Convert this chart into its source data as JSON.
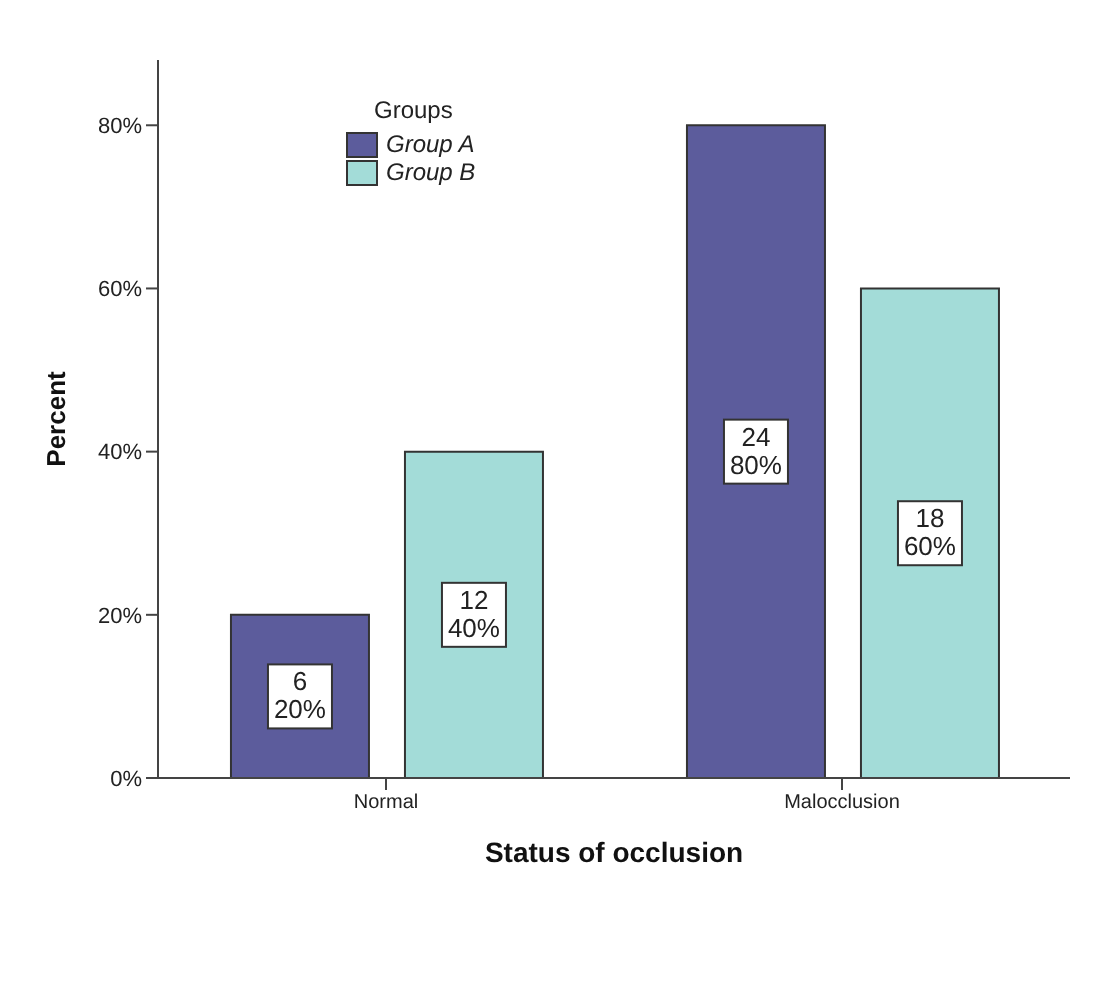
{
  "chart_data": {
    "type": "bar",
    "xlabel": "Status of occlusion",
    "ylabel": "Percent",
    "legend_title": "Groups",
    "categories": [
      "Normal",
      "Malocclusion"
    ],
    "series": [
      {
        "name": "Group A",
        "color": "#5c5c9c",
        "values": [
          20,
          80
        ],
        "value_labels": [
          "6\n20%",
          "24\n80%"
        ]
      },
      {
        "name": "Group B",
        "color": "#a3dcd8",
        "values": [
          40,
          60
        ],
        "value_labels": [
          "12\n40%",
          "18\n60%"
        ]
      }
    ],
    "ylim": [
      0,
      88
    ],
    "yticks": [
      {
        "value": 0,
        "label": "0%"
      },
      {
        "value": 20,
        "label": "20%"
      },
      {
        "value": 40,
        "label": "40%"
      },
      {
        "value": 60,
        "label": "60%"
      },
      {
        "value": 80,
        "label": "80%"
      }
    ],
    "grid": false,
    "legend": "top left"
  }
}
